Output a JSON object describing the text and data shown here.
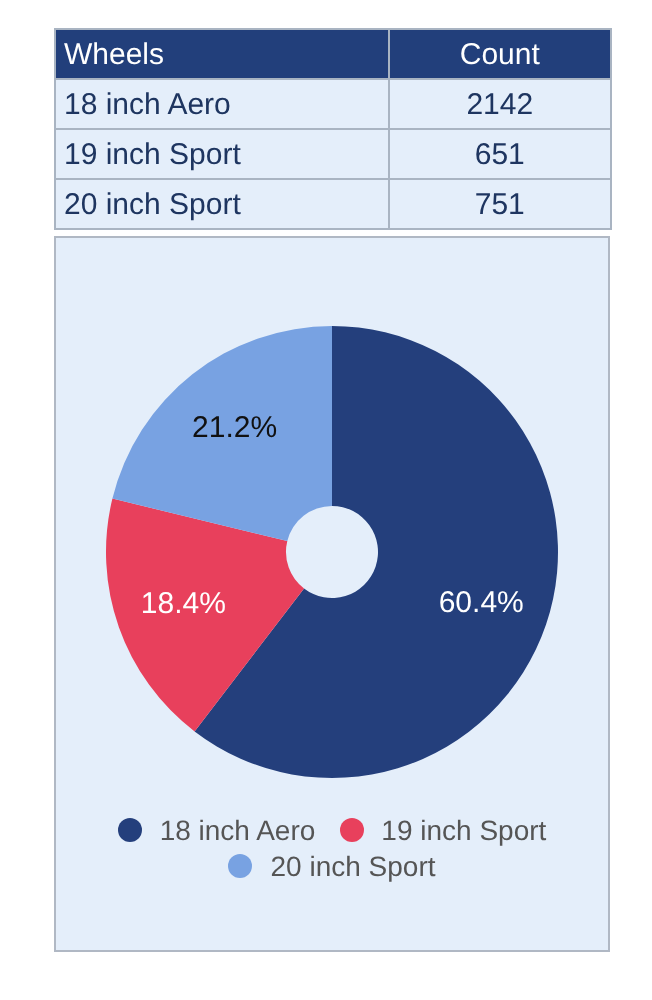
{
  "chart_data": [
    {
      "type": "other",
      "annotations": [
        "Wheels",
        "Count"
      ],
      "categories": [
        "18 inch Aero",
        "19 inch Sport",
        "20 inch Sport"
      ],
      "values": [
        2142,
        651,
        751
      ],
      "data_labels": true
    },
    {
      "type": "donut",
      "categories": [
        "18 inch Aero",
        "19 inch Sport",
        "20 inch Sport"
      ],
      "values": [
        60.4,
        18.4,
        21.2
      ],
      "colors": [
        "#243f7c",
        "#e8405c",
        "#78a2e2"
      ],
      "value_labels": [
        "60.4%",
        "18.4%",
        "21.2%"
      ],
      "legend": "bottom"
    }
  ]
}
